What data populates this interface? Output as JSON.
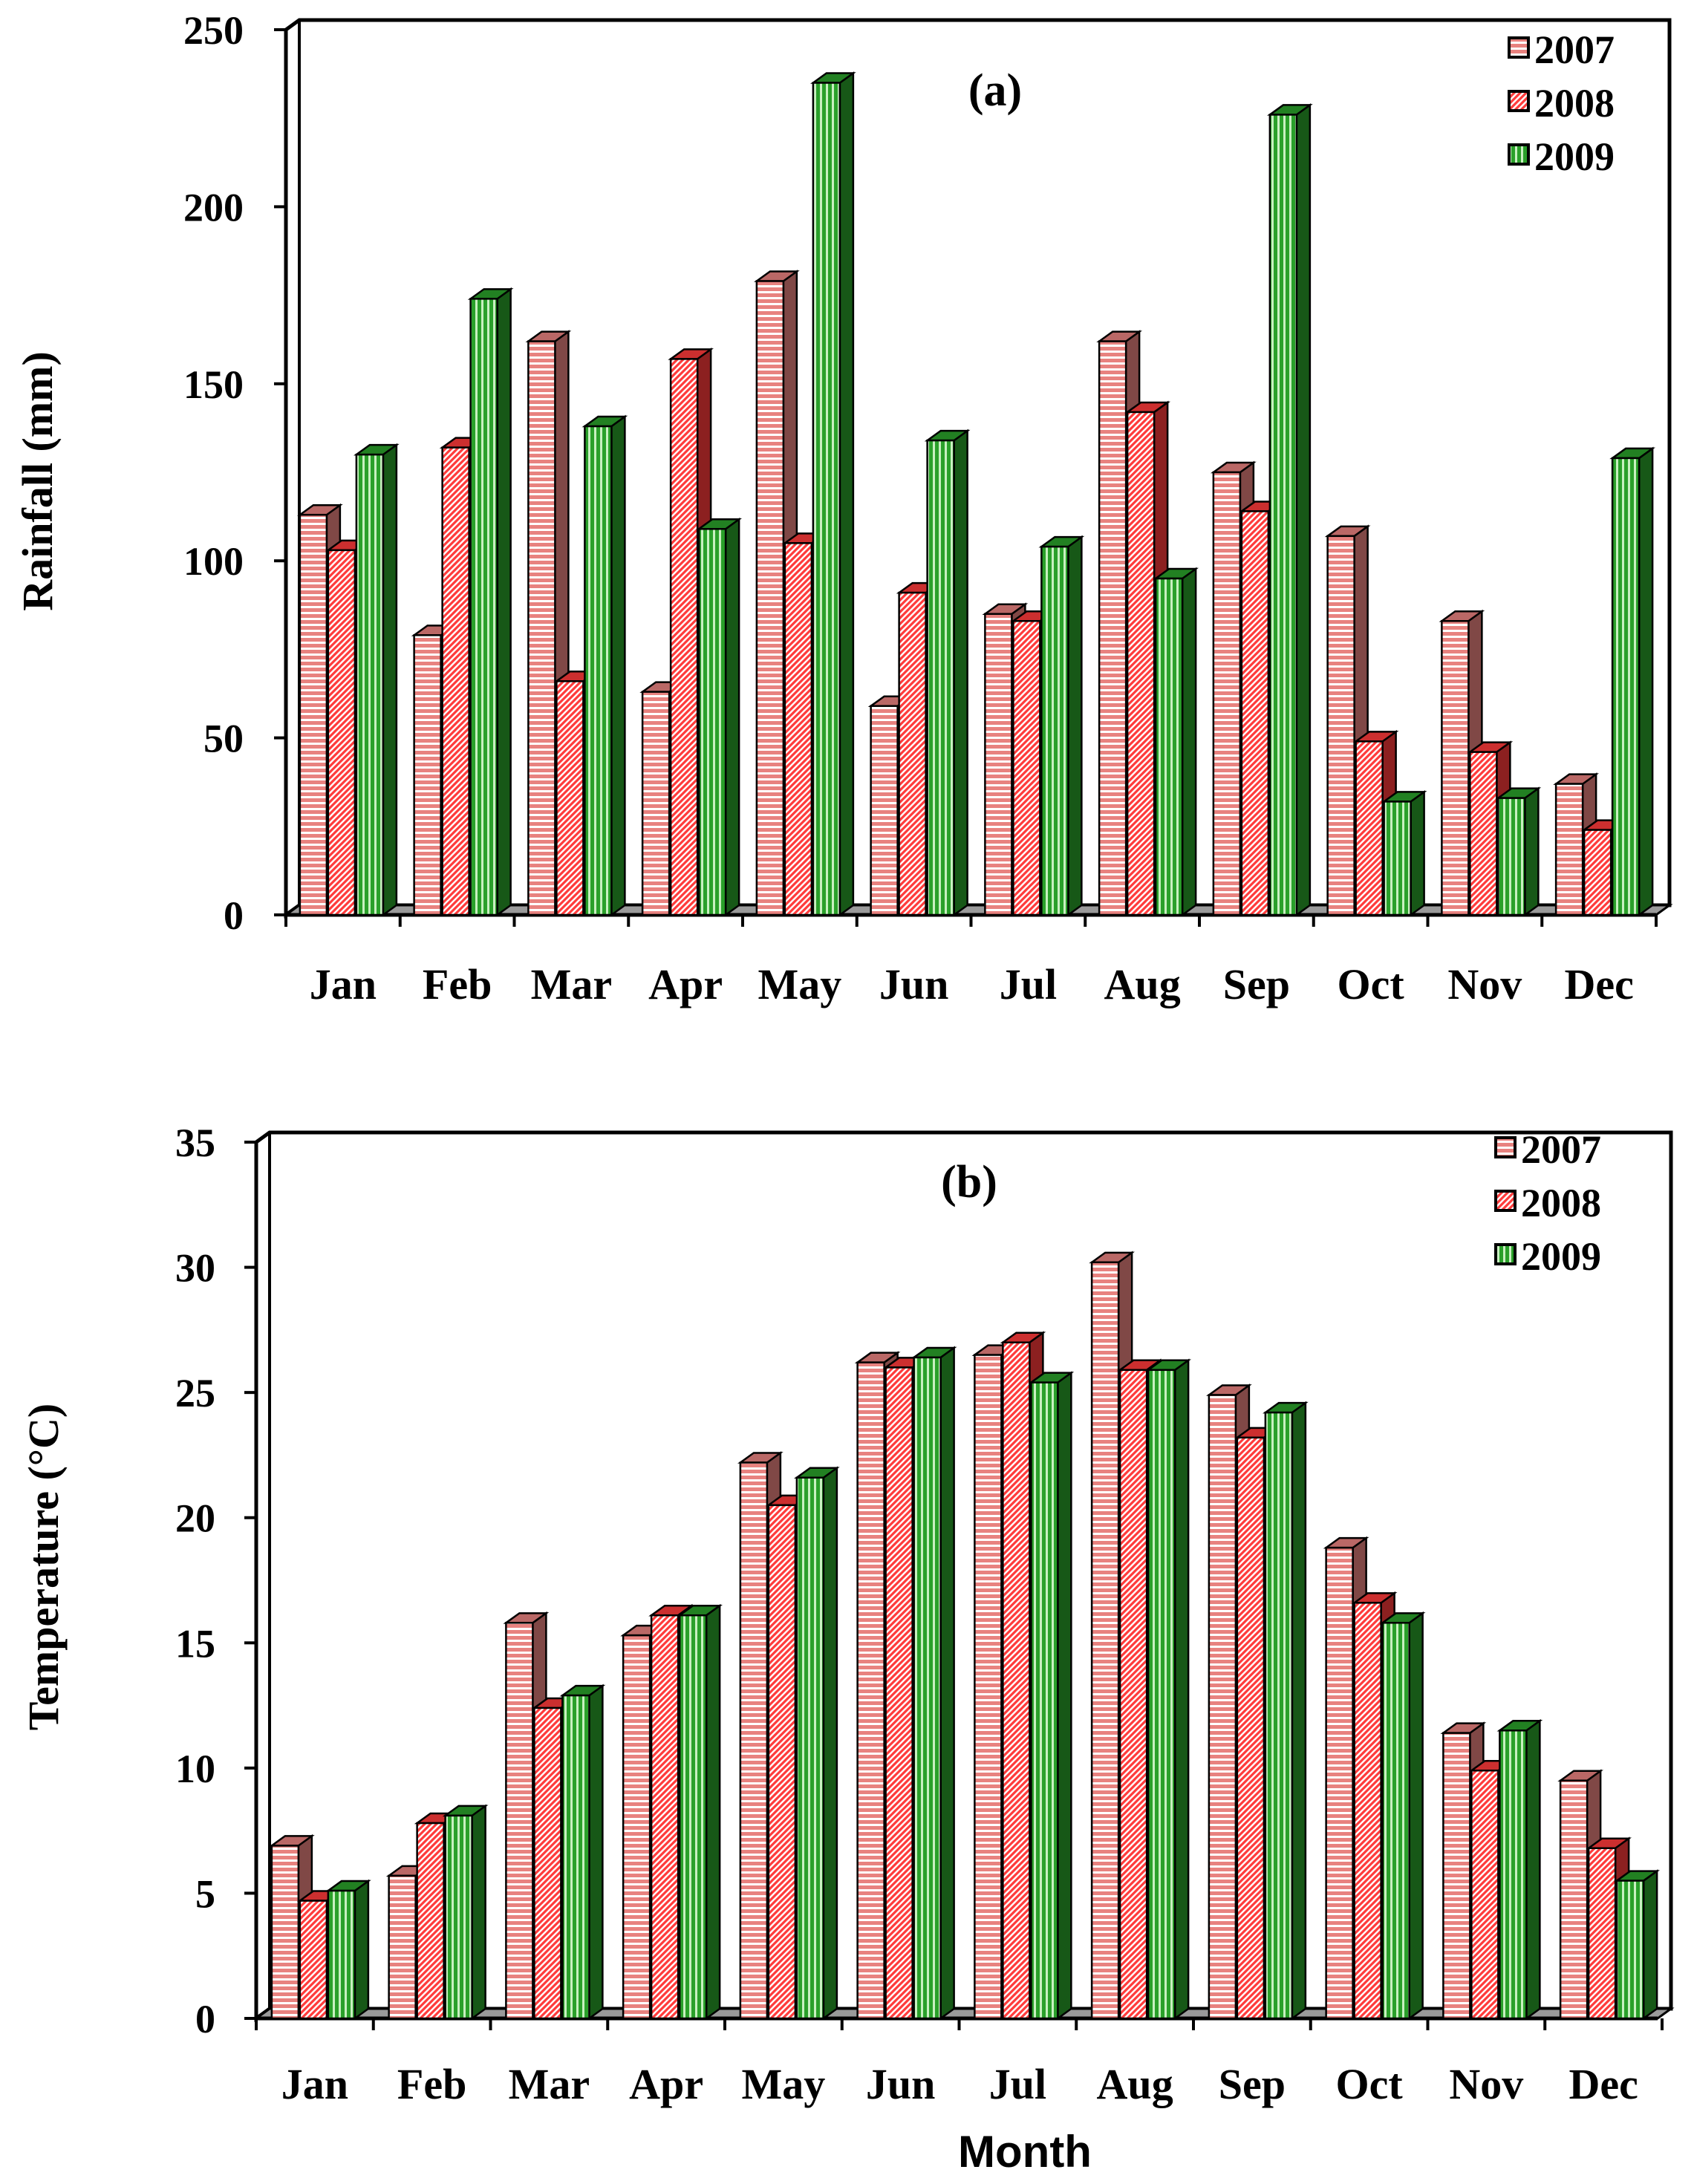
{
  "chart_data": [
    {
      "type": "bar",
      "panel_label": "(a)",
      "title": "",
      "xlabel": "",
      "ylabel": "Rainfall (mm)",
      "ylim": [
        0,
        250
      ],
      "yticks": [
        "0",
        "50",
        "100",
        "150",
        "200",
        "250"
      ],
      "categories": [
        "Jan",
        "Feb",
        "Mar",
        "Apr",
        "May",
        "Jun",
        "Jul",
        "Aug",
        "Sep",
        "Oct",
        "Nov",
        "Dec"
      ],
      "legend_position": "top-right",
      "series": [
        {
          "name": "2007",
          "color": "#e8827f",
          "stripe": "#ffffff",
          "pattern": "horizontal",
          "values": [
            113,
            79,
            162,
            63,
            179,
            59,
            85,
            162,
            125,
            107,
            83,
            37
          ]
        },
        {
          "name": "2008",
          "color": "#ff3b3b",
          "stripe": "#ffffff",
          "pattern": "diagonal",
          "values": [
            103,
            132,
            66,
            157,
            105,
            91,
            83,
            142,
            114,
            49,
            46,
            24
          ]
        },
        {
          "name": "2009",
          "color": "#2aa02a",
          "stripe": "#c8f0c0",
          "pattern": "vertical",
          "values": [
            130,
            174,
            138,
            109,
            235,
            134,
            104,
            95,
            226,
            32,
            33,
            129
          ]
        }
      ]
    },
    {
      "type": "bar",
      "panel_label": "(b)",
      "title": "",
      "xlabel": "Month",
      "ylabel": "Temperature (°C)",
      "ylim": [
        0,
        35
      ],
      "yticks": [
        "0",
        "5",
        "10",
        "15",
        "20",
        "25",
        "30",
        "35"
      ],
      "categories": [
        "Jan",
        "Feb",
        "Mar",
        "Apr",
        "May",
        "Jun",
        "Jul",
        "Aug",
        "Sep",
        "Oct",
        "Nov",
        "Dec"
      ],
      "legend_position": "top-right",
      "series": [
        {
          "name": "2007",
          "color": "#e8827f",
          "stripe": "#ffffff",
          "pattern": "horizontal",
          "values": [
            6.9,
            5.7,
            15.8,
            15.3,
            22.2,
            26.2,
            26.5,
            30.2,
            24.9,
            18.8,
            11.4,
            9.5
          ]
        },
        {
          "name": "2008",
          "color": "#ff3b3b",
          "stripe": "#ffffff",
          "pattern": "diagonal",
          "values": [
            4.7,
            7.8,
            12.4,
            16.1,
            20.5,
            26.0,
            27.0,
            25.9,
            23.2,
            16.6,
            9.9,
            6.8
          ]
        },
        {
          "name": "2009",
          "color": "#2aa02a",
          "stripe": "#c8f0c0",
          "pattern": "vertical",
          "values": [
            5.1,
            8.1,
            12.9,
            16.1,
            21.6,
            26.4,
            25.4,
            25.9,
            24.2,
            15.8,
            11.5,
            5.5
          ]
        }
      ]
    }
  ]
}
